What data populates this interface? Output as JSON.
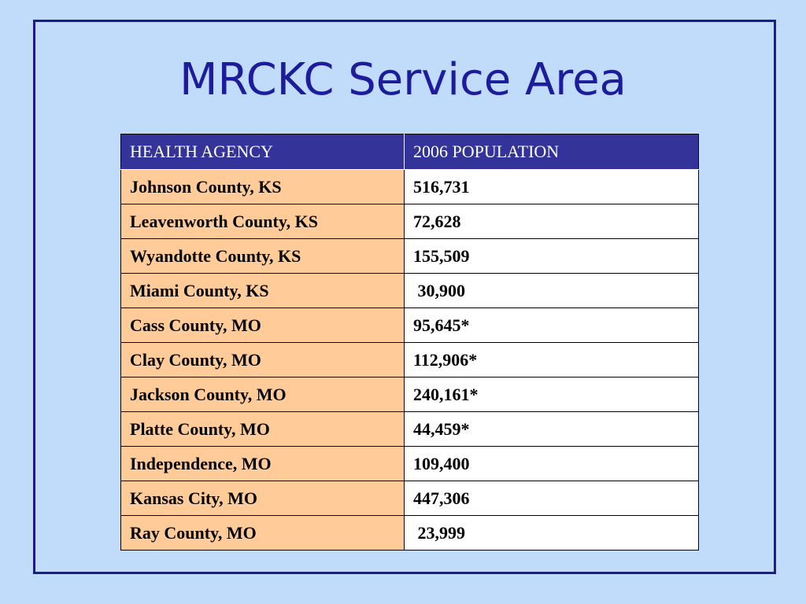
{
  "slide": {
    "title": "MRCKC Service Area"
  },
  "table": {
    "headers": [
      "HEALTH AGENCY",
      "2006 POPULATION"
    ],
    "rows": [
      {
        "agency": "Johnson County, KS",
        "population": "516,731"
      },
      {
        "agency": "Leavenworth County, KS",
        "population": "72,628"
      },
      {
        "agency": "Wyandotte County, KS",
        "population": "155,509"
      },
      {
        "agency": "Miami County, KS",
        "population": " 30,900"
      },
      {
        "agency": "Cass County, MO",
        "population": "95,645*"
      },
      {
        "agency": "Clay County, MO",
        "population": "112,906*"
      },
      {
        "agency": "Jackson County, MO",
        "population": "240,161*"
      },
      {
        "agency": "Platte County, MO",
        "population": "44,459*"
      },
      {
        "agency": "Independence, MO",
        "population": "109,400"
      },
      {
        "agency": "Kansas City, MO",
        "population": "447,306"
      },
      {
        "agency": "Ray County, MO",
        "population": " 23,999"
      }
    ]
  },
  "colors": {
    "background": "#c0dcfa",
    "frame_border": "#1c1c8c",
    "title_text": "#1c1c9c",
    "header_fill": "#333399",
    "agency_fill": "#ffcc99",
    "population_fill": "#ffffff"
  }
}
